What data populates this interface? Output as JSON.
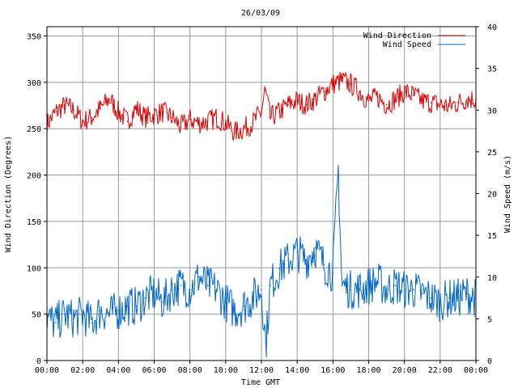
{
  "chart_data": {
    "type": "line",
    "title": "26/03/09",
    "xlabel": "Time GMT",
    "ylabel_left": "Wind Direction (Degrees)",
    "ylabel_right": "Wind Speed (m/s)",
    "x_ticks": [
      "00:00",
      "02:00",
      "04:00",
      "06:00",
      "08:00",
      "10:00",
      "12:00",
      "14:00",
      "16:00",
      "18:00",
      "20:00",
      "22:00",
      "00:00"
    ],
    "x_range_hours": [
      0,
      24
    ],
    "y_left_range": [
      0,
      360
    ],
    "y_left_ticks": [
      0,
      50,
      100,
      150,
      200,
      250,
      300,
      350
    ],
    "y_right_range": [
      0,
      40
    ],
    "y_right_ticks": [
      0,
      5,
      10,
      15,
      20,
      25,
      30,
      35,
      40
    ],
    "grid": true,
    "legend_position": "top-right",
    "series": [
      {
        "name": "Wind Direction",
        "axis": "left",
        "color": "#dd0000",
        "x_hours": [
          0,
          0.5,
          1,
          1.5,
          2,
          2.5,
          3,
          3.5,
          4,
          4.5,
          5,
          5.5,
          6,
          6.5,
          7,
          7.5,
          8,
          8.5,
          9,
          9.5,
          10,
          10.5,
          11,
          11.5,
          12,
          12.2,
          12.5,
          13,
          13.5,
          14,
          14.5,
          15,
          15.5,
          16,
          16.5,
          17,
          17.5,
          18,
          18.5,
          19,
          19.5,
          20,
          20.5,
          21,
          21.5,
          22,
          22.5,
          23,
          23.5,
          24
        ],
        "values": [
          255,
          268,
          275,
          270,
          258,
          262,
          272,
          282,
          268,
          258,
          272,
          262,
          265,
          268,
          262,
          252,
          260,
          256,
          258,
          262,
          256,
          246,
          250,
          256,
          268,
          292,
          262,
          268,
          276,
          280,
          276,
          282,
          290,
          298,
          302,
          298,
          290,
          280,
          284,
          276,
          282,
          290,
          286,
          280,
          278,
          276,
          274,
          278,
          282,
          282
        ]
      },
      {
        "name": "Wind Speed",
        "axis": "right",
        "color": "#0066cc",
        "x_hours": [
          0,
          0.5,
          1,
          1.5,
          2,
          2.5,
          3,
          3.5,
          4,
          4.5,
          5,
          5.5,
          6,
          6.5,
          7,
          7.5,
          8,
          8.5,
          9,
          9.5,
          10,
          10.5,
          11,
          11.5,
          12,
          12.25,
          12.5,
          13,
          13.5,
          14,
          14.5,
          15,
          15.5,
          16,
          16.3,
          16.5,
          17,
          17.5,
          18,
          18.5,
          19,
          19.5,
          20,
          20.5,
          21,
          21.5,
          22,
          22.5,
          23,
          23.5,
          24
        ],
        "values": [
          5,
          4.5,
          5.5,
          5,
          5.5,
          4.5,
          6,
          5.5,
          6,
          6.5,
          6.5,
          7.5,
          8,
          7,
          8.5,
          9,
          8.5,
          10,
          9,
          8.5,
          7,
          6,
          6.5,
          7.5,
          8.5,
          2,
          9,
          11,
          12,
          13,
          12,
          13.5,
          11.5,
          10.5,
          23,
          9,
          8.5,
          8.5,
          9,
          9.5,
          8.5,
          9,
          8.5,
          8.5,
          8,
          7.5,
          7,
          7.5,
          7.5,
          8,
          7.5
        ]
      }
    ]
  }
}
